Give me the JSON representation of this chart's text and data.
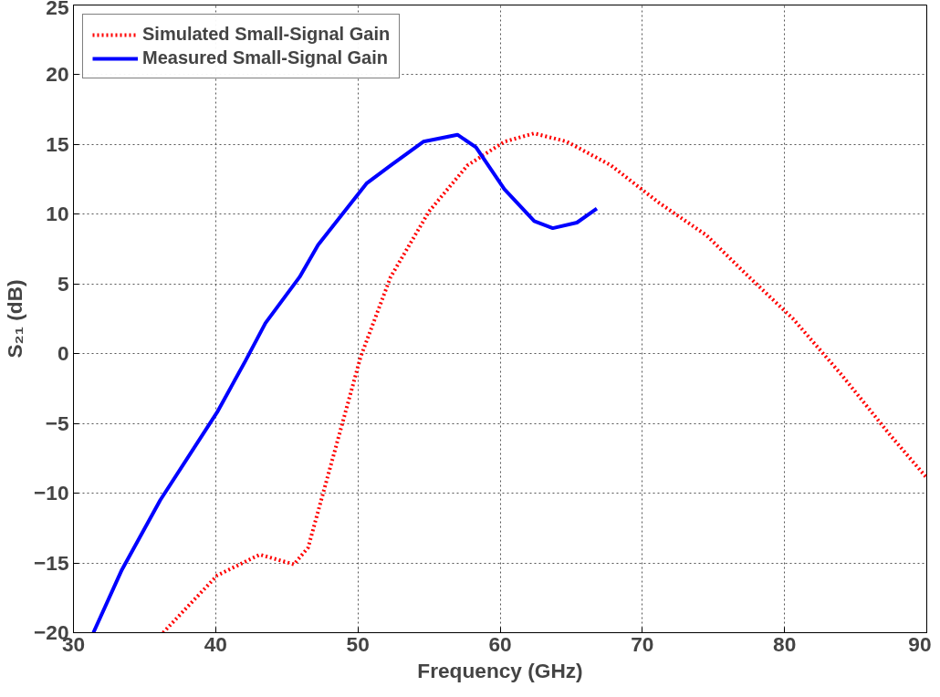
{
  "chart_data": {
    "type": "line",
    "xlabel": "Frequency (GHz)",
    "ylabel": "S₂₁ (dB)",
    "xlim": [
      30,
      90
    ],
    "ylim": [
      -20,
      25
    ],
    "xticks": [
      30,
      40,
      50,
      60,
      70,
      80,
      90
    ],
    "yticks": [
      -20,
      -15,
      -10,
      -5,
      0,
      5,
      10,
      15,
      20,
      25
    ],
    "grid": true,
    "legend": "top left",
    "series": [
      {
        "name": "Simulated Small-Signal Gain",
        "color": "#ff0000",
        "line_style": "dotted",
        "x": [
          36.3,
          40.1,
          43.1,
          45.5,
          46.5,
          48.5,
          50.2,
          52.3,
          55.0,
          57.7,
          60.3,
          62.4,
          64.7,
          67.8,
          71.2,
          74.5,
          77.2,
          80.6,
          84.0,
          87.4,
          90
        ],
        "values": [
          -20,
          -15.9,
          -14.4,
          -15.1,
          -13.9,
          -6.5,
          -0.2,
          5.5,
          10.2,
          13.5,
          15.2,
          15.8,
          15.2,
          13.5,
          10.8,
          8.5,
          5.8,
          2.5,
          -1.5,
          -5.8,
          -8.9
        ]
      },
      {
        "name": "Measured Small-Signal Gain",
        "color": "#0000ff",
        "line_style": "solid",
        "x": [
          31.4,
          33.4,
          36.1,
          40.1,
          42.1,
          43.5,
          45.9,
          47.2,
          50.6,
          52.3,
          54.6,
          57.0,
          58.3,
          60.3,
          62.4,
          63.7,
          65.4,
          66.8
        ],
        "values": [
          -20,
          -15.5,
          -10.5,
          -4.2,
          -0.5,
          2.2,
          5.5,
          7.8,
          12.2,
          13.5,
          15.2,
          15.7,
          14.8,
          11.8,
          9.5,
          9.0,
          9.4,
          10.4
        ]
      }
    ]
  }
}
